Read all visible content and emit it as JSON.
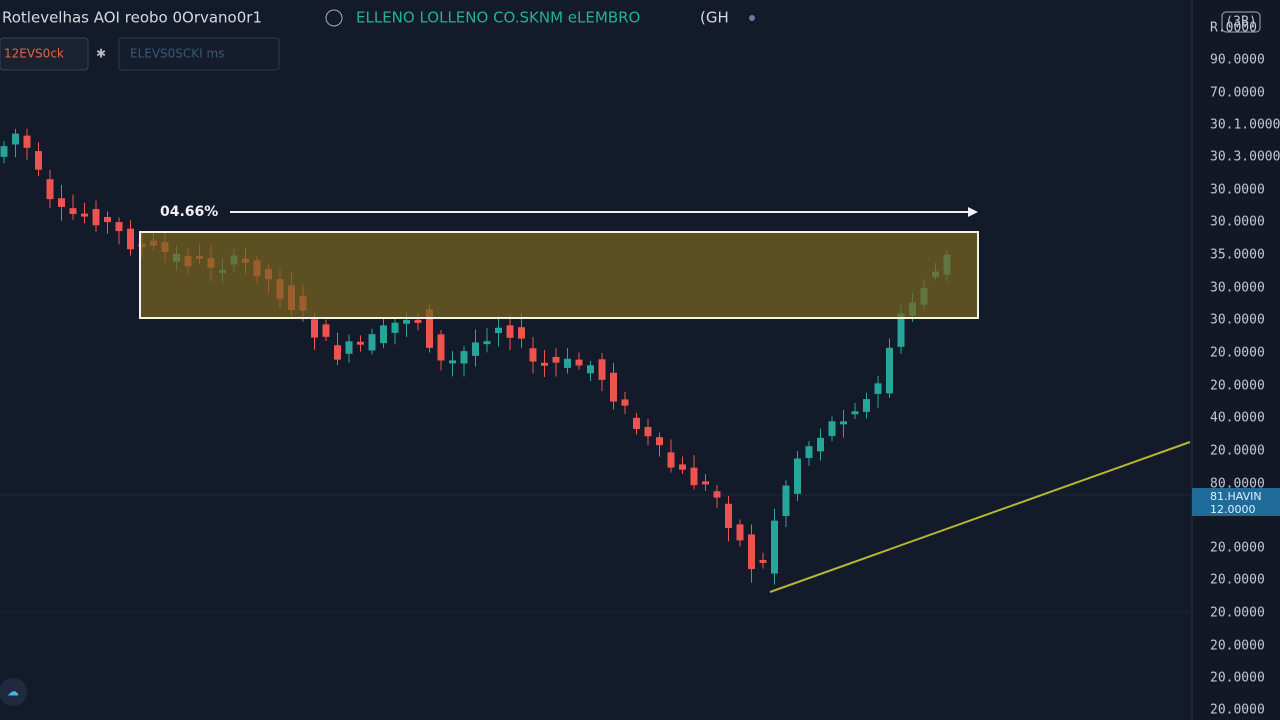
{
  "header": {
    "title": "Rotlevelhas AOI reobo 0Orvano0r1",
    "status": "ELLENO LOLLENO CO.SKNM eLEMBRO",
    "extra": "(GH"
  },
  "toolbar": {
    "buttons": [
      "12EVS0ck",
      "ELEVS0SCKI ms"
    ]
  },
  "annotation": {
    "label": "04.66%"
  },
  "price_axis": {
    "corner": "(3B)",
    "top_label": "R.0000",
    "labels": [
      "90.0000",
      "70.0000",
      "30.1.0000",
      "30.3.0000",
      "30.0000",
      "30.0000",
      "35.0000",
      "30.0000",
      "30.0000",
      "20.0000",
      "20.0000",
      "40.0000",
      "20.0000",
      "80.0000",
      "20.0000",
      "20.0000",
      "20.0000",
      "20.0000",
      "20.0000",
      "20.0000"
    ],
    "price_tag": [
      "81.HAVIN",
      "12.0000"
    ]
  }
}
